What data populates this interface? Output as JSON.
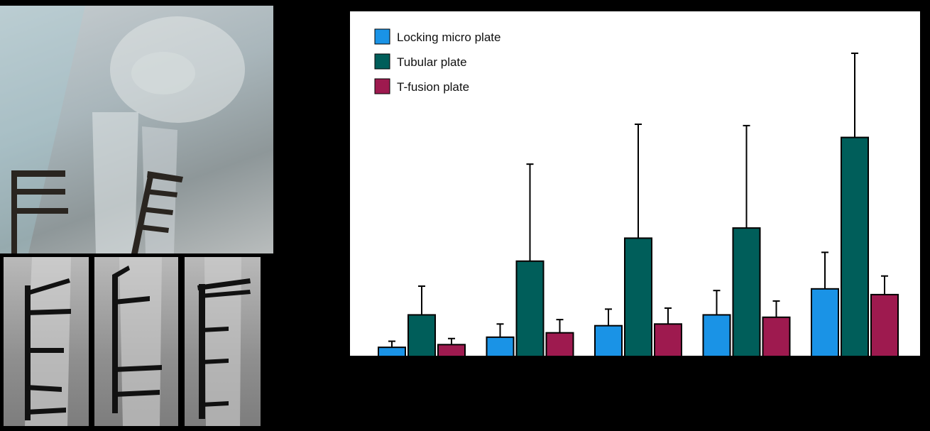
{
  "figure": {
    "panels": [
      {
        "name": "xray-main",
        "content": "wrist radiograph with plates"
      },
      {
        "name": "xray-1",
        "content": "plate fixation radiograph"
      },
      {
        "name": "xray-2",
        "content": "plate fixation radiograph"
      },
      {
        "name": "xray-3",
        "content": "plate fixation radiograph"
      }
    ]
  },
  "chart_data": {
    "type": "bar",
    "title": "",
    "xlabel": "",
    "ylabel": "",
    "categories": [
      "",
      "",
      "",
      "",
      ""
    ],
    "ylim": [
      0,
      100
    ],
    "grid": false,
    "legend_position": "top-left",
    "series": [
      {
        "name": "Locking micro plate",
        "color": "#1a93e6",
        "values": [
          2.7,
          5.7,
          9.1,
          12.3,
          20.0
        ],
        "errors": [
          1.8,
          3.9,
          4.9,
          7.2,
          10.8
        ]
      },
      {
        "name": "Tubular plate",
        "color": "#005e5a",
        "values": [
          12.3,
          28.2,
          35.0,
          38.0,
          64.8
        ],
        "errors": [
          8.5,
          28.7,
          33.7,
          30.3,
          24.9
        ]
      },
      {
        "name": "T-fusion plate",
        "color": "#9e1a4f",
        "values": [
          3.5,
          7.0,
          9.6,
          11.6,
          18.3
        ],
        "errors": [
          1.8,
          3.9,
          4.7,
          4.8,
          5.5
        ]
      }
    ]
  }
}
